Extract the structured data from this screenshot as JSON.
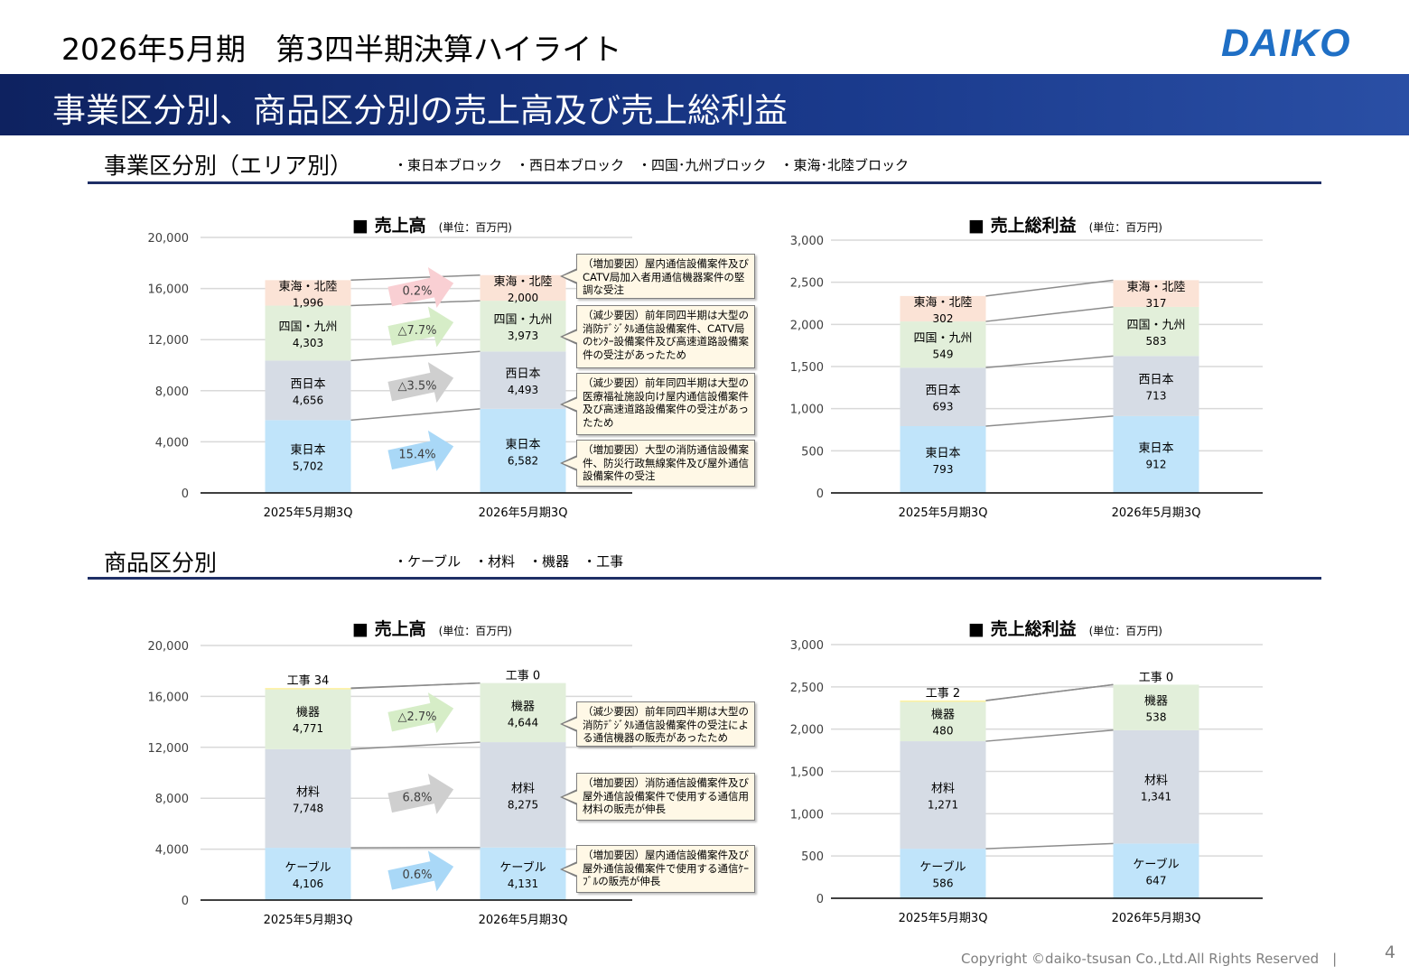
{
  "header": {
    "title": "2026年5月期　第3四半期決算ハイライト",
    "logo": "DAIKO"
  },
  "band": {
    "title": "事業区分別、商品区分別の売上高及び売上総利益"
  },
  "section1": {
    "title": "事業区分別（エリア別）",
    "legend": "・東日本ブロック　・西日本ブロック　・四国･九州ブロック　・東海･北陸ブロック"
  },
  "section2": {
    "title": "商品区分別",
    "legend": "・ケーブル　・材料　・機器　・工事"
  },
  "colors": {
    "blue": "#c0e4fa",
    "gray": "#d6dce5",
    "green": "#e2efda",
    "peach": "#fbe3d6",
    "yellow": "#fff2a0",
    "navy": "#1f2f66",
    "decrease": "#e00000",
    "increase": "#44546a"
  },
  "footer": {
    "copyright": "Copyright ©daiko-tsusan Co.,Ltd.All Rights Reserved　|",
    "page": "4"
  },
  "chart_data": [
    {
      "id": "area-sales",
      "type": "stacked-bar",
      "title": "■ 売上高",
      "unit": "(単位：百万円)",
      "categories": [
        "2025年5月期3Q",
        "2026年5月期3Q"
      ],
      "ylim": [
        0,
        20000
      ],
      "yticks": [
        "0",
        "4,000",
        "8,000",
        "12,000",
        "16,000",
        "20,000"
      ],
      "grid": true,
      "series": [
        {
          "name": "東日本",
          "values": [
            5702,
            6582
          ],
          "labels": [
            "5,702",
            "6,582"
          ],
          "color": "blue"
        },
        {
          "name": "西日本",
          "values": [
            4656,
            4493
          ],
          "labels": [
            "4,656",
            "4,493"
          ],
          "color": "gray"
        },
        {
          "name": "四国・九州",
          "values": [
            4303,
            3973
          ],
          "labels": [
            "4,303",
            "3,973"
          ],
          "color": "green"
        },
        {
          "name": "東海・北陸",
          "values": [
            1996,
            2000
          ],
          "labels": [
            "1,996",
            "2,000"
          ],
          "color": "peach"
        }
      ],
      "changes": [
        "15.4%",
        "△3.5%",
        "△7.7%",
        "0.2%"
      ],
      "callouts": [
        {
          "kind": "up",
          "text": "（増加要因）大型の消防通信設備案件、防災行政無線案件及び屋外通信設備案件の受注"
        },
        {
          "kind": "down",
          "text": "（減少要因）前年同四半期は大型の医療福祉施設向け屋内通信設備案件及び高速道路設備案件の受注があったため"
        },
        {
          "kind": "down",
          "text": "（減少要因）前年同四半期は大型の消防ﾃﾞｼﾞﾀﾙ通信設備案件、CATV局のｾﾝﾀｰ設備案件及び高速道路設備案件の受注があったため"
        },
        {
          "kind": "up",
          "text": "（増加要因）屋内通信設備案件及びCATV局加入者用通信機器案件の堅調な受注"
        }
      ]
    },
    {
      "id": "area-gross",
      "type": "stacked-bar",
      "title": "■ 売上総利益",
      "unit": "(単位：百万円)",
      "categories": [
        "2025年5月期3Q",
        "2026年5月期3Q"
      ],
      "ylim": [
        0,
        3000
      ],
      "yticks": [
        "0",
        "500",
        "1,000",
        "1,500",
        "2,000",
        "2,500",
        "3,000"
      ],
      "grid": true,
      "series": [
        {
          "name": "東日本",
          "values": [
            793,
            912
          ],
          "labels": [
            "793",
            "912"
          ],
          "color": "blue"
        },
        {
          "name": "西日本",
          "values": [
            693,
            713
          ],
          "labels": [
            "693",
            "713"
          ],
          "color": "gray"
        },
        {
          "name": "四国・九州",
          "values": [
            549,
            583
          ],
          "labels": [
            "549",
            "583"
          ],
          "color": "green"
        },
        {
          "name": "東海・北陸",
          "values": [
            302,
            317
          ],
          "labels": [
            "302",
            "317"
          ],
          "color": "peach"
        }
      ]
    },
    {
      "id": "product-sales",
      "type": "stacked-bar",
      "title": "■ 売上高",
      "unit": "(単位：百万円)",
      "categories": [
        "2025年5月期3Q",
        "2026年5月期3Q"
      ],
      "ylim": [
        0,
        20000
      ],
      "yticks": [
        "0",
        "4,000",
        "8,000",
        "12,000",
        "16,000",
        "20,000"
      ],
      "grid": true,
      "series": [
        {
          "name": "ケーブル",
          "values": [
            4106,
            4131
          ],
          "labels": [
            "4,106",
            "4,131"
          ],
          "color": "blue"
        },
        {
          "name": "材料",
          "values": [
            7748,
            8275
          ],
          "labels": [
            "7,748",
            "8,275"
          ],
          "color": "gray"
        },
        {
          "name": "機器",
          "values": [
            4771,
            4644
          ],
          "labels": [
            "4,771",
            "4,644"
          ],
          "color": "green"
        },
        {
          "name": "工事",
          "values": [
            34,
            0
          ],
          "labels": [
            "34",
            "0"
          ],
          "color": "yellow",
          "inline": true
        }
      ],
      "changes": [
        "0.6%",
        "6.8%",
        "△2.7%",
        ""
      ],
      "callouts": [
        {
          "kind": "up",
          "text": "（増加要因）屋内通信設備案件及び屋外通信設備案件で使用する通信ｹｰﾌﾞﾙの販売が伸長"
        },
        {
          "kind": "up",
          "text": "（増加要因）消防通信設備案件及び屋外通信設備案件で使用する通信用材料の販売が伸長"
        },
        {
          "kind": "down",
          "text": "（減少要因）前年同四半期は大型の消防ﾃﾞｼﾞﾀﾙ通信設備案件の受注による通信機器の販売があったため"
        }
      ]
    },
    {
      "id": "product-gross",
      "type": "stacked-bar",
      "title": "■ 売上総利益",
      "unit": "(単位：百万円)",
      "categories": [
        "2025年5月期3Q",
        "2026年5月期3Q"
      ],
      "ylim": [
        0,
        3000
      ],
      "yticks": [
        "0",
        "500",
        "1,000",
        "1,500",
        "2,000",
        "2,500",
        "3,000"
      ],
      "grid": true,
      "series": [
        {
          "name": "ケーブル",
          "values": [
            586,
            647
          ],
          "labels": [
            "586",
            "647"
          ],
          "color": "blue"
        },
        {
          "name": "材料",
          "values": [
            1271,
            1341
          ],
          "labels": [
            "1,271",
            "1,341"
          ],
          "color": "gray"
        },
        {
          "name": "機器",
          "values": [
            480,
            538
          ],
          "labels": [
            "480",
            "538"
          ],
          "color": "green"
        },
        {
          "name": "工事",
          "values": [
            2,
            0
          ],
          "labels": [
            "2",
            "0"
          ],
          "color": "yellow",
          "inline": true
        }
      ]
    }
  ]
}
